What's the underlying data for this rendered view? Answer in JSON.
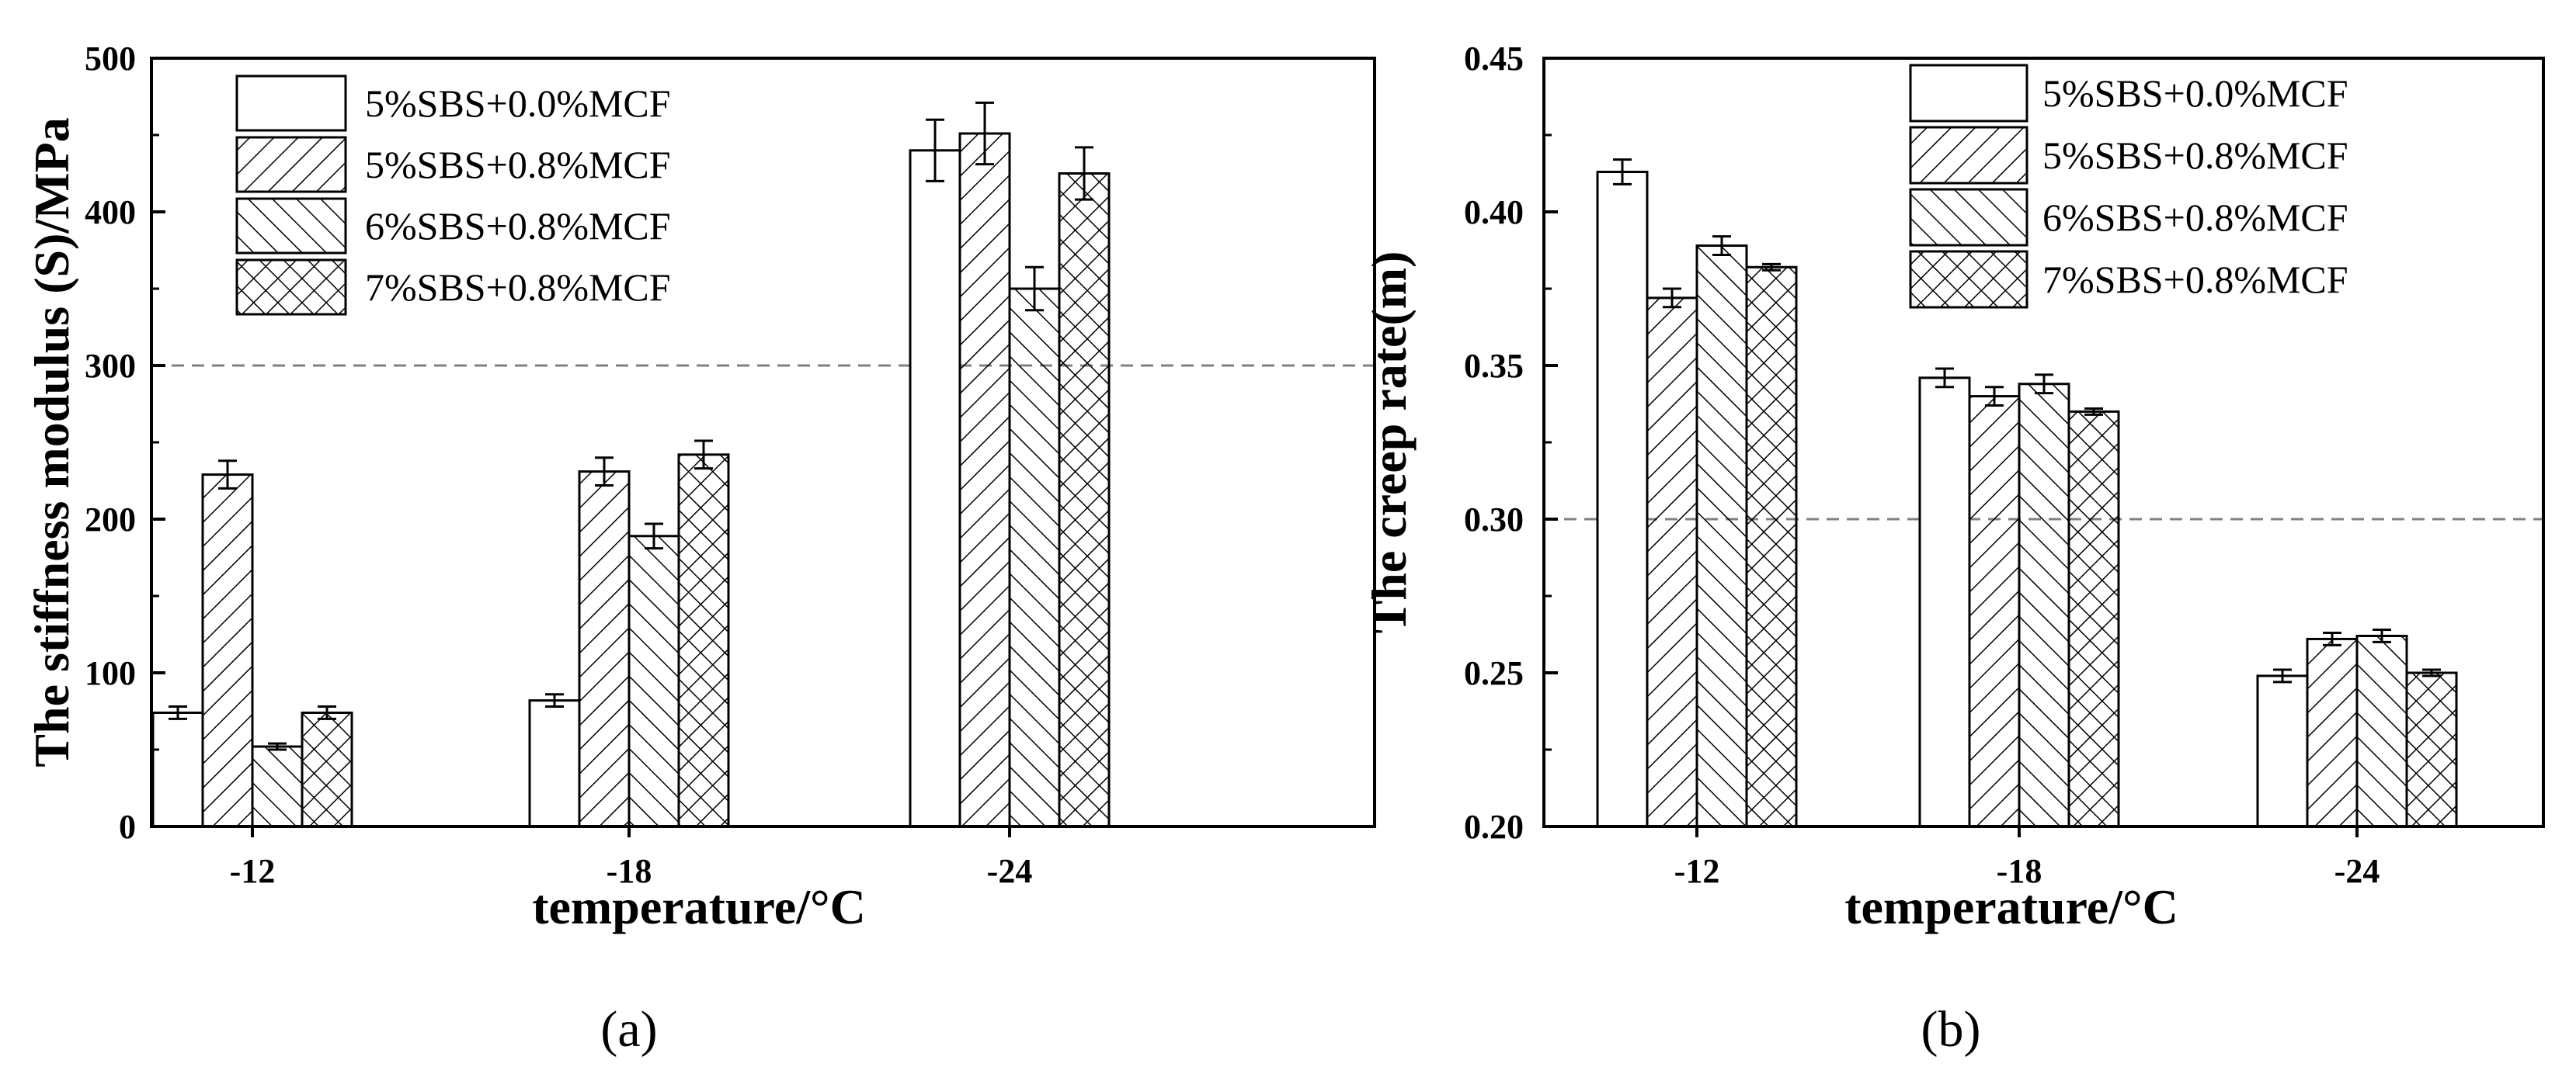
{
  "panel_labels": [
    "(a)",
    "(b)"
  ],
  "chart_data": [
    {
      "type": "bar",
      "panel": "(a)",
      "categories": [
        "-12",
        "-18",
        "-24"
      ],
      "xlabel": "temperature/°C",
      "ylabel": "The stiffness modulus (S)/MPa",
      "ylim": [
        0,
        500
      ],
      "yticks": [
        0,
        100,
        200,
        300,
        400,
        500
      ],
      "reference_line": 300,
      "grid": false,
      "legend_position": "top-left",
      "series": [
        {
          "name": "5%SBS+0.0%MCF",
          "pattern": "none",
          "values": [
            74,
            82,
            440
          ],
          "errors": [
            4,
            4,
            20
          ]
        },
        {
          "name": "5%SBS+0.8%MCF",
          "pattern": "forward-hatch",
          "values": [
            229,
            231,
            451
          ],
          "errors": [
            9,
            9,
            20
          ]
        },
        {
          "name": "6%SBS+0.8%MCF",
          "pattern": "back-hatch",
          "values": [
            52,
            189,
            350
          ],
          "errors": [
            2,
            8,
            14
          ]
        },
        {
          "name": "7%SBS+0.8%MCF",
          "pattern": "cross-hatch",
          "values": [
            74,
            242,
            425
          ],
          "errors": [
            4,
            9,
            17
          ]
        }
      ]
    },
    {
      "type": "bar",
      "panel": "(b)",
      "categories": [
        "-12",
        "-18",
        "-24"
      ],
      "xlabel": "temperature/°C",
      "ylabel": "The creep rate(m)",
      "ylim": [
        0.2,
        0.45
      ],
      "yticks": [
        0.2,
        0.25,
        0.3,
        0.35,
        0.4,
        0.45
      ],
      "reference_line": 0.3,
      "grid": false,
      "legend_position": "top-right",
      "series": [
        {
          "name": "5%SBS+0.0%MCF",
          "pattern": "none",
          "values": [
            0.413,
            0.346,
            0.249
          ],
          "errors": [
            0.004,
            0.003,
            0.002
          ]
        },
        {
          "name": "5%SBS+0.8%MCF",
          "pattern": "forward-hatch",
          "values": [
            0.372,
            0.34,
            0.261
          ],
          "errors": [
            0.003,
            0.003,
            0.002
          ]
        },
        {
          "name": "6%SBS+0.8%MCF",
          "pattern": "back-hatch",
          "values": [
            0.389,
            0.344,
            0.262
          ],
          "errors": [
            0.003,
            0.003,
            0.002
          ]
        },
        {
          "name": "7%SBS+0.8%MCF",
          "pattern": "cross-hatch",
          "values": [
            0.382,
            0.335,
            0.25
          ],
          "errors": [
            0.001,
            0.001,
            0.001
          ]
        }
      ]
    }
  ]
}
